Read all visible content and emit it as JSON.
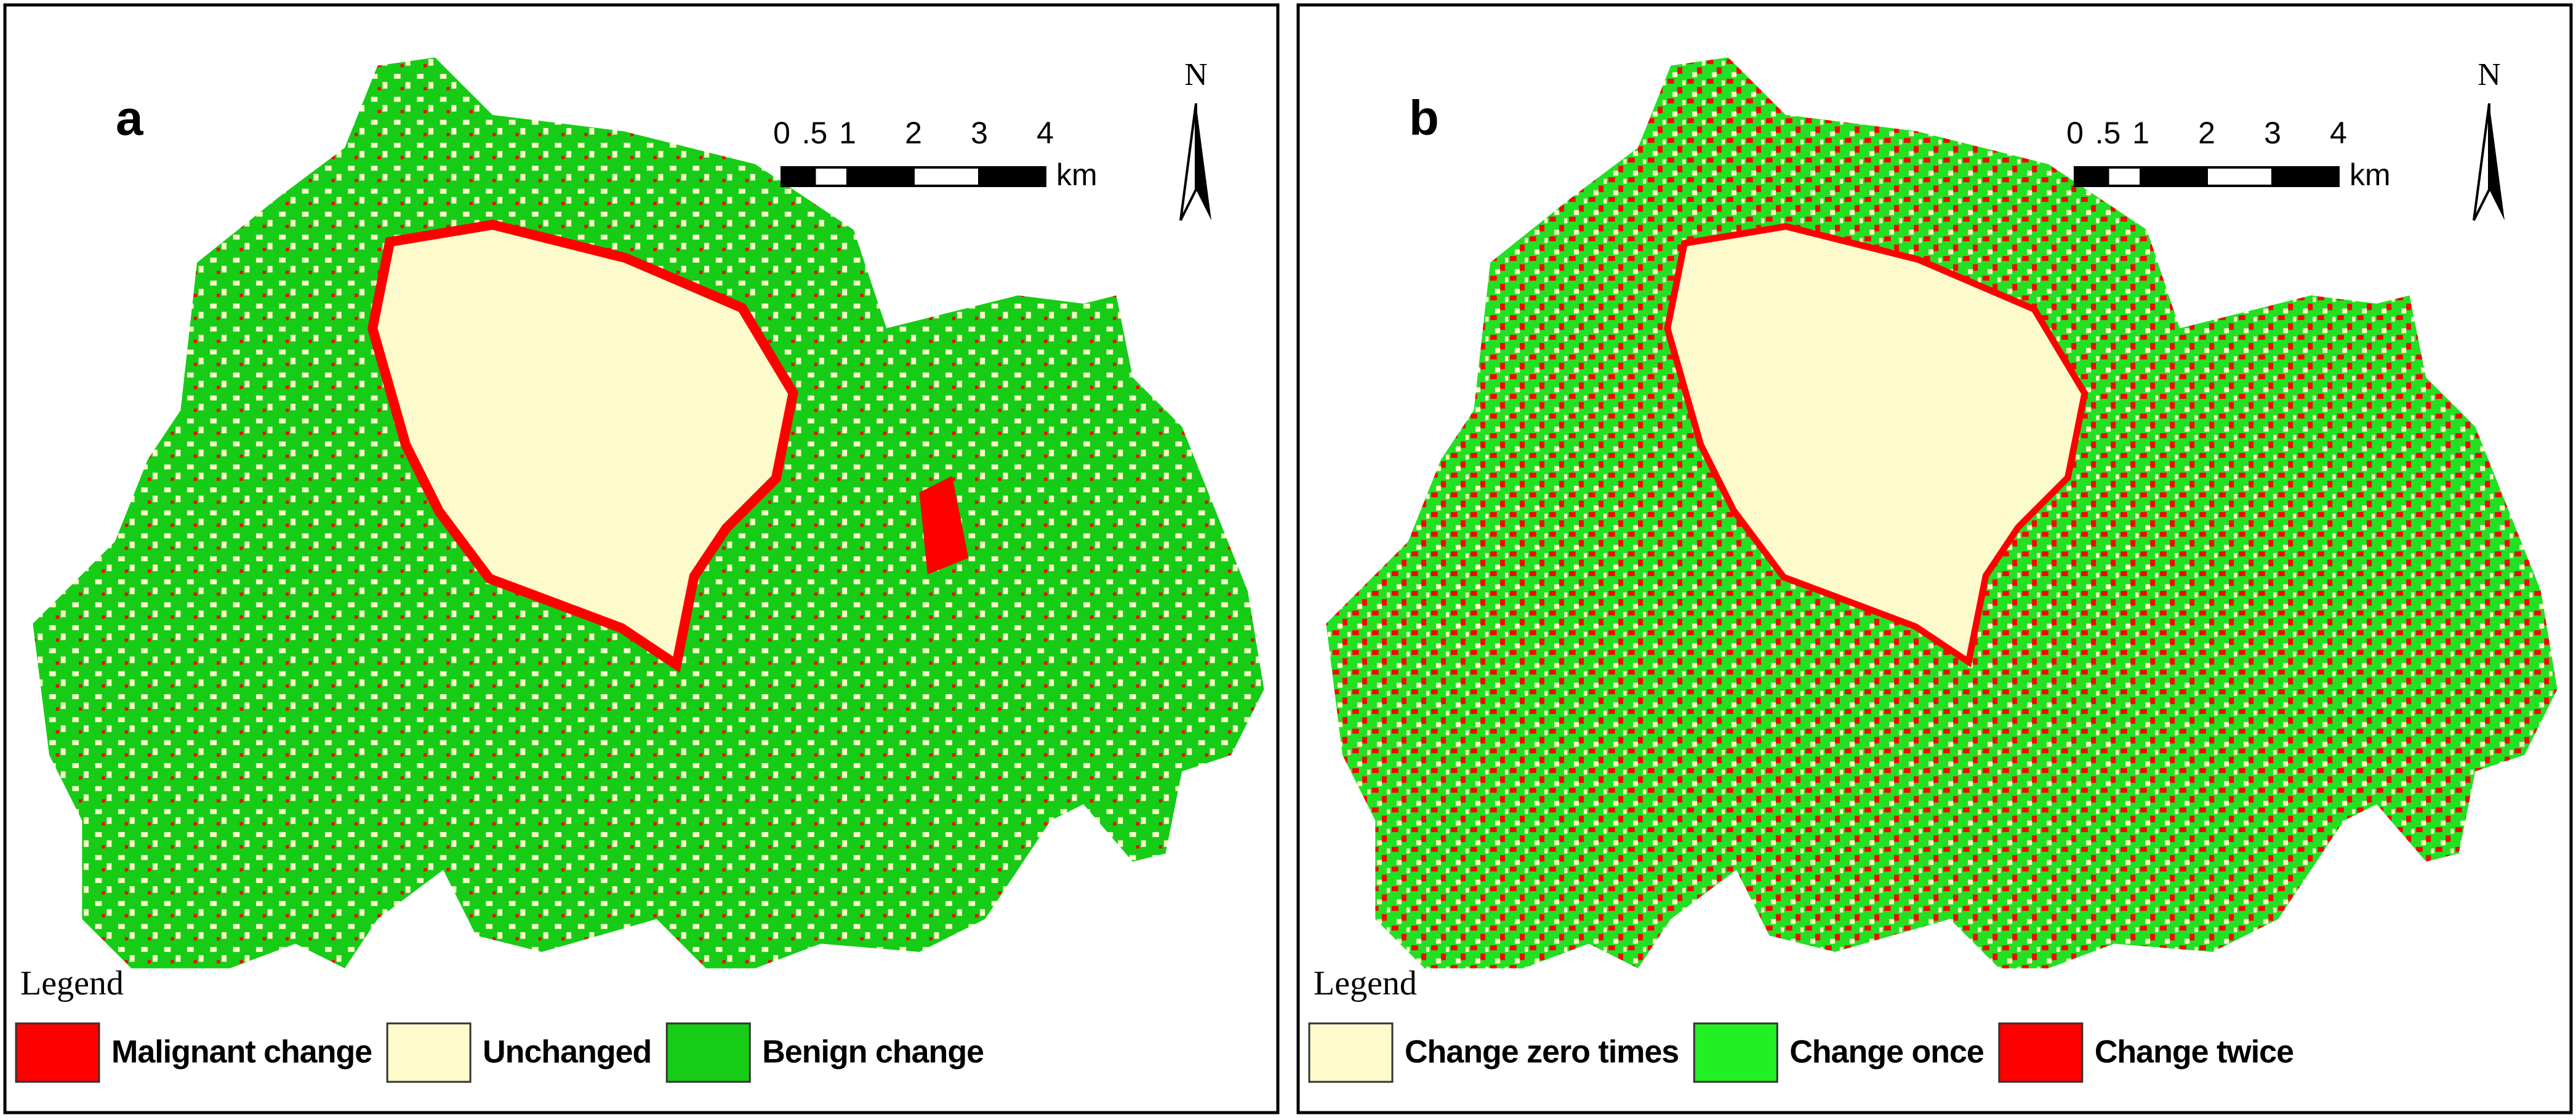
{
  "panels": [
    {
      "label": "a",
      "north": "N",
      "scale_bar": {
        "ticks": [
          0,
          {
            "value": 0.5,
            "label": ".5"
          },
          1,
          2,
          3,
          4
        ],
        "unit": "km"
      },
      "legend": {
        "title": "Legend",
        "items": [
          {
            "label": "Malignant change",
            "color": "#ff0000"
          },
          {
            "label": "Unchanged",
            "color": "#fdfacb"
          },
          {
            "label": "Benign change",
            "color": "#16cc16"
          }
        ]
      }
    },
    {
      "label": "b",
      "north": "N",
      "scale_bar": {
        "ticks": [
          0,
          {
            "value": 0.5,
            "label": ".5"
          },
          1,
          2,
          3,
          4
        ],
        "unit": "km"
      },
      "legend": {
        "title": "Legend",
        "items": [
          {
            "label": "Change zero times",
            "color": "#fdfacb"
          },
          {
            "label": "Change once",
            "color": "#22f022"
          },
          {
            "label": "Change twice",
            "color": "#ff0000"
          }
        ]
      }
    }
  ]
}
